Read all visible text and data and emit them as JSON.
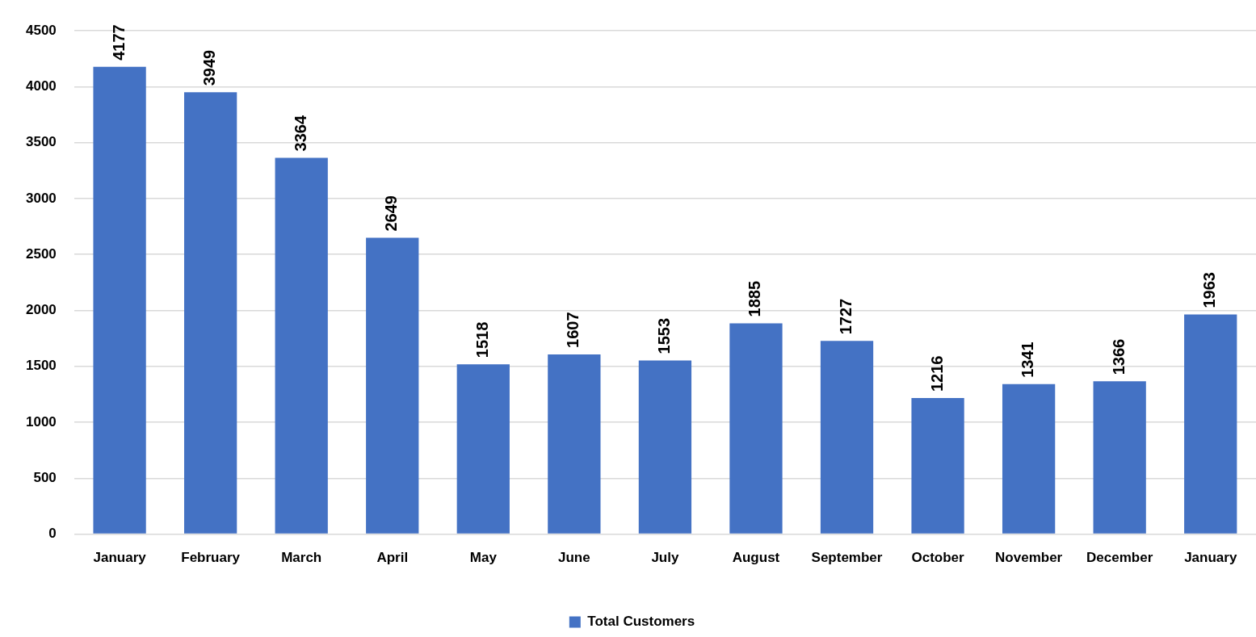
{
  "chart_data": {
    "type": "bar",
    "categories": [
      "January",
      "February",
      "March",
      "April",
      "May",
      "June",
      "July",
      "August",
      "September",
      "October",
      "November",
      "December",
      "January"
    ],
    "series": [
      {
        "name": "Total Customers",
        "color": "#4472c4",
        "values": [
          4177,
          3949,
          3364,
          2649,
          1518,
          1607,
          1553,
          1885,
          1727,
          1216,
          1341,
          1366,
          1963
        ]
      }
    ],
    "ylim": [
      0,
      4500
    ],
    "yticks": [
      0,
      500,
      1000,
      1500,
      2000,
      2500,
      3000,
      3500,
      4000,
      4500
    ],
    "grid": "y",
    "legend": "bottom",
    "data_labels": true
  }
}
